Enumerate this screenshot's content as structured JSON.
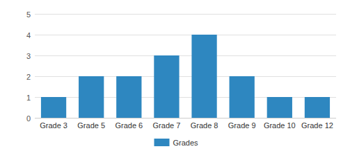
{
  "chart_data": {
    "type": "bar",
    "categories": [
      "Grade 3",
      "Grade 5",
      "Grade 6",
      "Grade 7",
      "Grade 8",
      "Grade 9",
      "Grade 10",
      "Grade 12"
    ],
    "series": [
      {
        "name": "Grades",
        "color": "#2e87c0",
        "values": [
          1,
          2,
          2,
          3,
          4,
          2,
          1,
          1
        ]
      }
    ],
    "ylim": [
      0,
      5
    ],
    "yticks": [
      0,
      1,
      2,
      3,
      4,
      5
    ],
    "grid": true,
    "legend": "bottom"
  }
}
